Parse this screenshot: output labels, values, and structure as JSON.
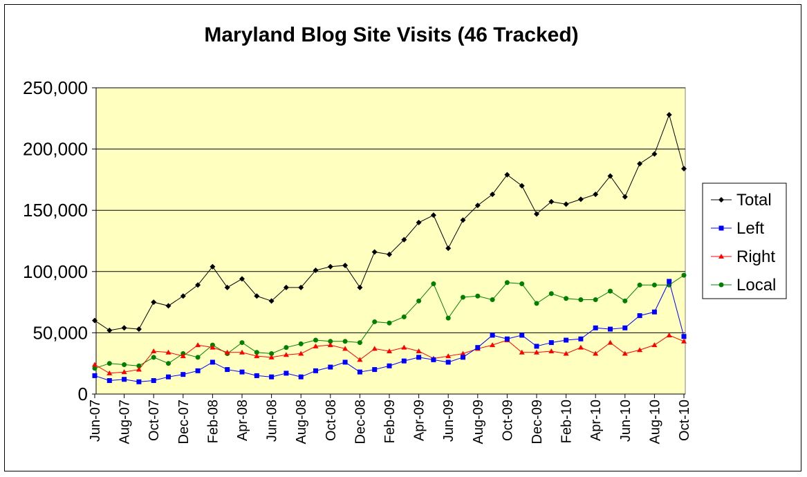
{
  "chart_data": {
    "type": "line",
    "title": "Maryland Blog Site Visits (46 Tracked)",
    "xlabel": "",
    "ylabel": "",
    "ylim": [
      0,
      250000
    ],
    "yticks": [
      0,
      50000,
      100000,
      150000,
      200000,
      250000
    ],
    "ytick_labels": [
      "0",
      "50,000",
      "100,000",
      "150,000",
      "200,000",
      "250,000"
    ],
    "grid": true,
    "background": "#FFFFC0",
    "legend_position": "right",
    "categories": [
      "Jun-07",
      "Jul-07",
      "Aug-07",
      "Sep-07",
      "Oct-07",
      "Nov-07",
      "Dec-07",
      "Jan-08",
      "Feb-08",
      "Mar-08",
      "Apr-08",
      "May-08",
      "Jun-08",
      "Jul-08",
      "Aug-08",
      "Sep-08",
      "Oct-08",
      "Nov-08",
      "Dec-08",
      "Jan-09",
      "Feb-09",
      "Mar-09",
      "Apr-09",
      "May-09",
      "Jun-09",
      "Jul-09",
      "Aug-09",
      "Sep-09",
      "Oct-09",
      "Nov-09",
      "Dec-09",
      "Jan-10",
      "Feb-10",
      "Mar-10",
      "Apr-10",
      "May-10",
      "Jun-10",
      "Jul-10",
      "Aug-10",
      "Sep-10",
      "Oct-10"
    ],
    "tick_labels": [
      "Jun-07",
      "Aug-07",
      "Oct-07",
      "Dec-07",
      "Feb-08",
      "Apr-08",
      "Jun-08",
      "Aug-08",
      "Oct-08",
      "Dec-08",
      "Feb-09",
      "Apr-09",
      "Jun-09",
      "Aug-09",
      "Oct-09",
      "Dec-09",
      "Feb-10",
      "Apr-10",
      "Jun-10",
      "Aug-10",
      "Oct-10"
    ],
    "series": [
      {
        "name": "Total",
        "color": "#000000",
        "marker": "diamond",
        "values": [
          60000,
          52000,
          54000,
          53000,
          75000,
          72000,
          80000,
          89000,
          104000,
          87000,
          94000,
          80000,
          76000,
          87000,
          87000,
          101000,
          104000,
          105000,
          87000,
          116000,
          114000,
          126000,
          140000,
          146000,
          119000,
          142000,
          154000,
          163000,
          179000,
          170000,
          147000,
          157000,
          155000,
          159000,
          163000,
          178000,
          161000,
          188000,
          196000,
          228000,
          184000
        ]
      },
      {
        "name": "Left",
        "color": "#0000FF",
        "marker": "square",
        "values": [
          15000,
          11000,
          12000,
          10000,
          11000,
          14000,
          16000,
          19000,
          26000,
          20000,
          18000,
          15000,
          14000,
          17000,
          14000,
          19000,
          22000,
          26000,
          18000,
          20000,
          23000,
          27000,
          30000,
          28000,
          26000,
          30000,
          38000,
          48000,
          45000,
          48000,
          39000,
          42000,
          44000,
          45000,
          54000,
          53000,
          54000,
          64000,
          67000,
          92000,
          47000
        ]
      },
      {
        "name": "Right",
        "color": "#FF0000",
        "marker": "triangle",
        "values": [
          24000,
          17000,
          18000,
          20000,
          35000,
          34000,
          31000,
          40000,
          38000,
          34000,
          34000,
          31000,
          30000,
          32000,
          33000,
          39000,
          40000,
          37000,
          28000,
          37000,
          35000,
          38000,
          35000,
          29000,
          31000,
          33000,
          37000,
          40000,
          44000,
          34000,
          34000,
          35000,
          33000,
          38000,
          33000,
          42000,
          33000,
          36000,
          40000,
          48000,
          43000
        ]
      },
      {
        "name": "Local",
        "color": "#008000",
        "marker": "circle",
        "values": [
          21000,
          25000,
          24000,
          23000,
          30000,
          25000,
          33000,
          30000,
          40000,
          33000,
          42000,
          34000,
          33000,
          38000,
          41000,
          44000,
          43000,
          43000,
          42000,
          59000,
          58000,
          63000,
          76000,
          90000,
          62000,
          79000,
          80000,
          77000,
          91000,
          90000,
          74000,
          82000,
          78000,
          77000,
          77000,
          84000,
          76000,
          89000,
          89000,
          89000,
          97000
        ]
      }
    ]
  }
}
